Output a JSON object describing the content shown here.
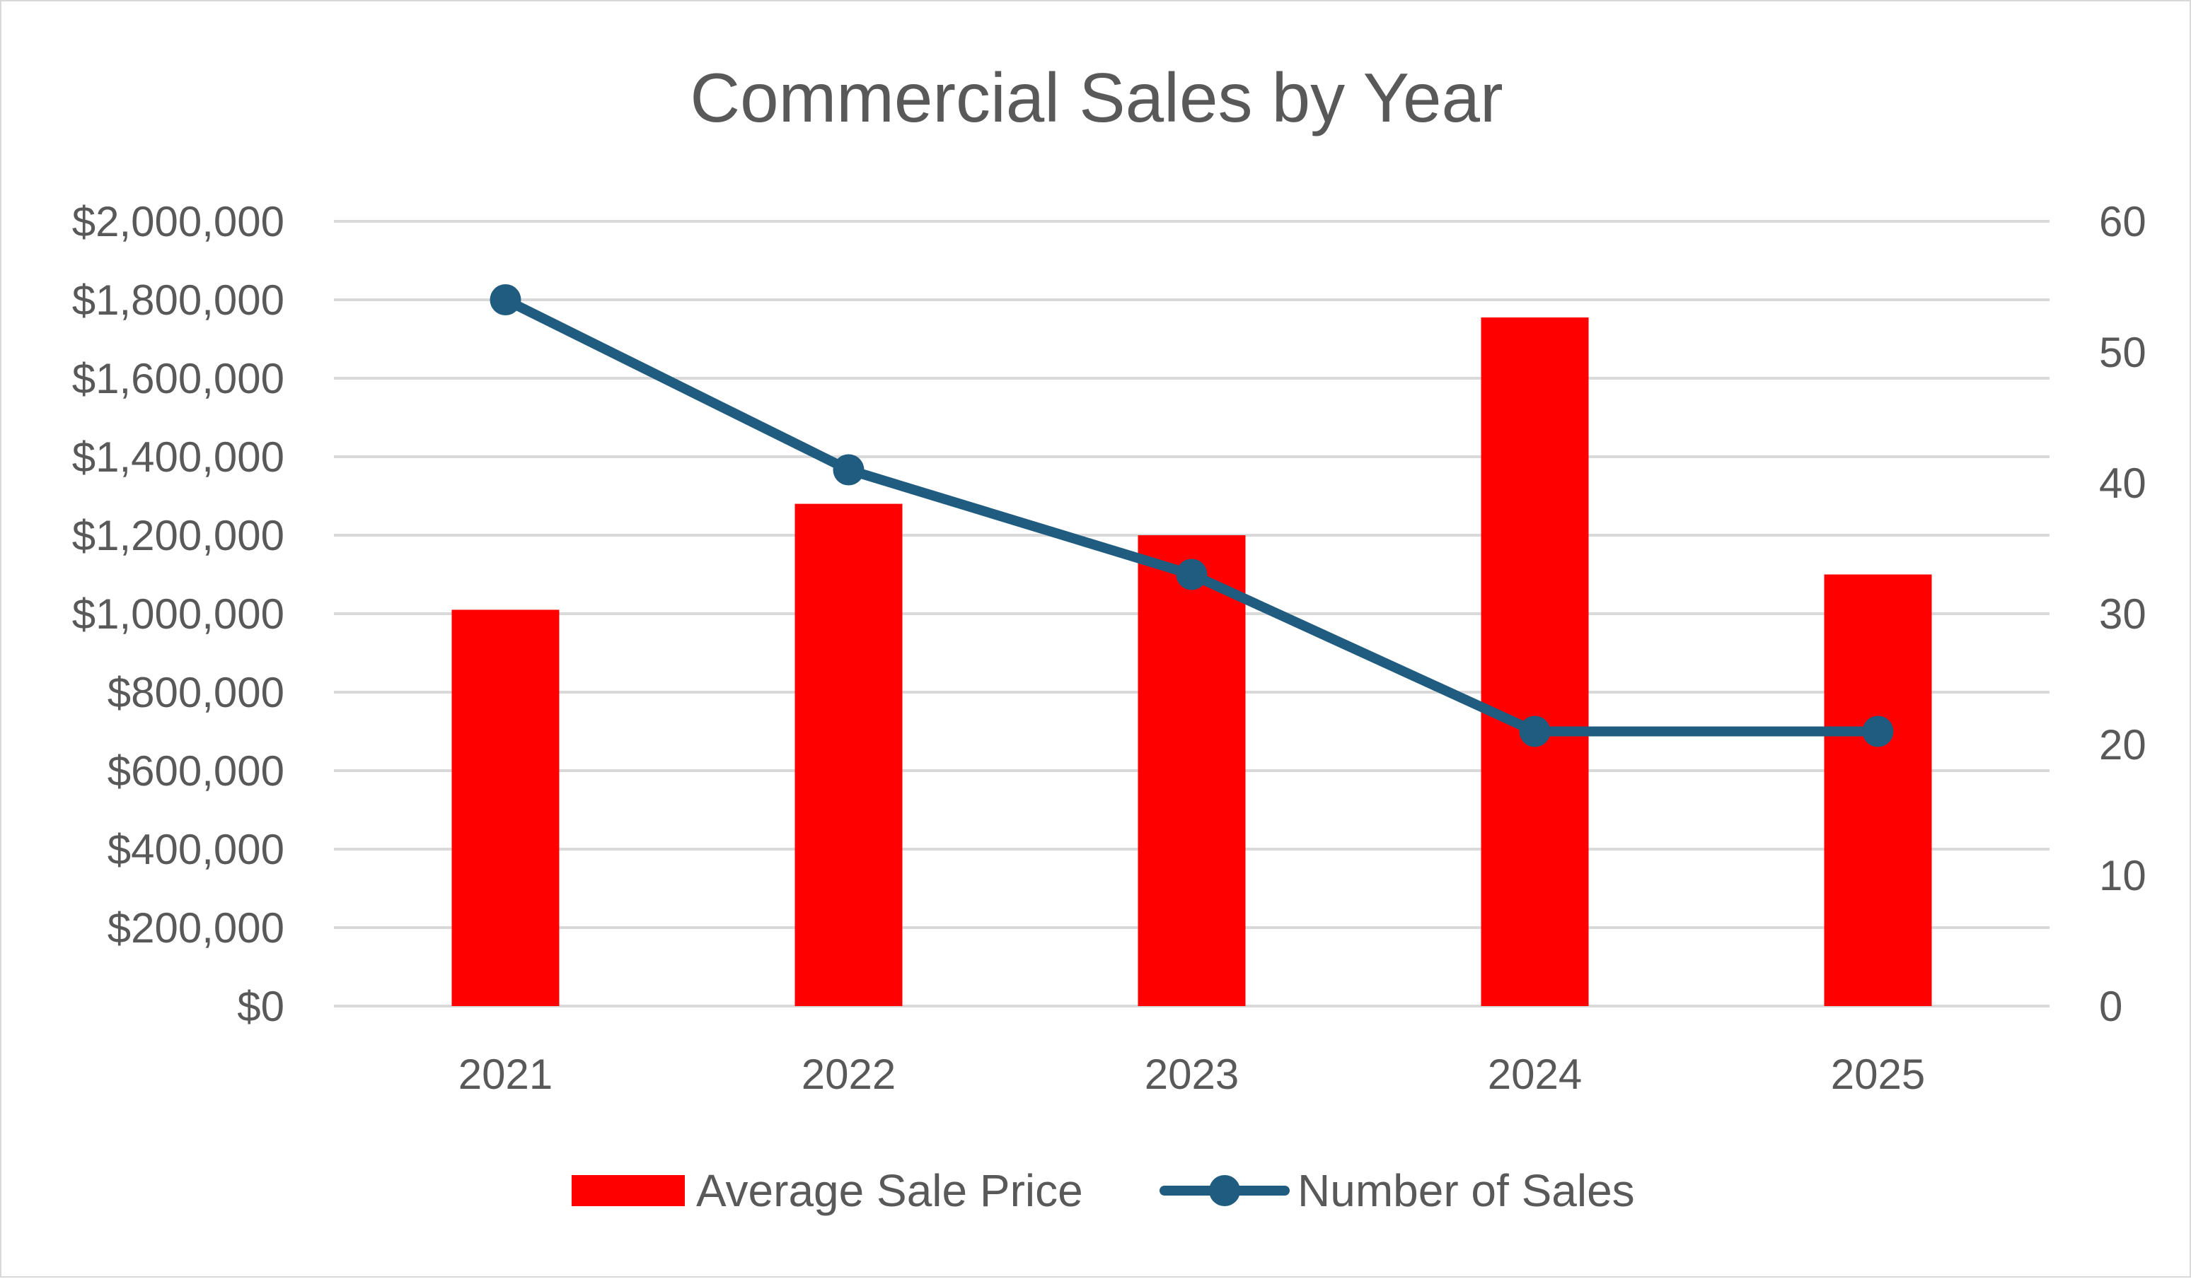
{
  "chart_data": {
    "type": "bar",
    "title": "Commercial Sales by Year",
    "categories": [
      "2021",
      "2022",
      "2023",
      "2024",
      "2025"
    ],
    "series": [
      {
        "name": "Average Sale Price",
        "type": "bar",
        "axis": "left",
        "color": "#ff0000",
        "values": [
          1010000,
          1280000,
          1200000,
          1755000,
          1100000
        ]
      },
      {
        "name": "Number of Sales",
        "type": "line",
        "axis": "right",
        "color": "#1f5c7f",
        "marker": "circle",
        "values": [
          54,
          41,
          33,
          21,
          21
        ]
      }
    ],
    "y_left": {
      "range": [
        0,
        2000000
      ],
      "ticks": [
        "$2,000,000",
        "$1,800,000",
        "$1,600,000",
        "$1,400,000",
        "$1,200,000",
        "$1,000,000",
        "$800,000",
        "$600,000",
        "$400,000",
        "$200,000",
        "$0"
      ]
    },
    "y_right": {
      "range": [
        0,
        60
      ],
      "ticks": [
        "60",
        "50",
        "40",
        "30",
        "20",
        "10",
        "0"
      ]
    },
    "xlabel": "",
    "ylabel": "",
    "grid": true,
    "legend_position": "bottom"
  }
}
